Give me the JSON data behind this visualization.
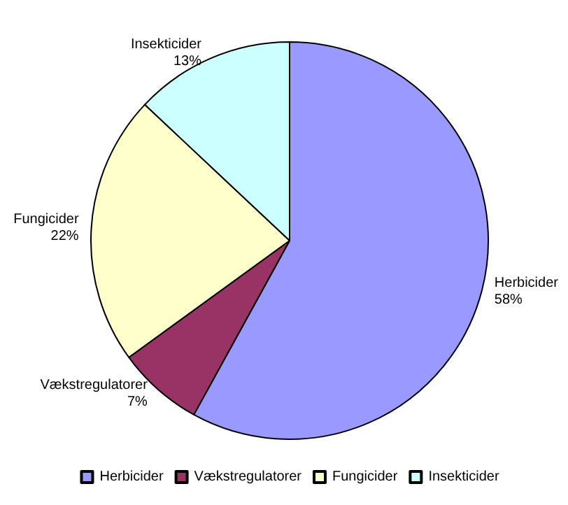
{
  "chart_data": {
    "type": "pie",
    "categories": [
      "Herbicider",
      "Vækstregulatorer",
      "Fungicider",
      "Insekticider"
    ],
    "values": [
      58,
      7,
      22,
      13
    ],
    "colors": [
      "#9999ff",
      "#993366",
      "#ffffcc",
      "#ccffff"
    ],
    "value_labels": [
      "58%",
      "7%",
      "22%",
      "13%"
    ],
    "legend": "bottom"
  }
}
